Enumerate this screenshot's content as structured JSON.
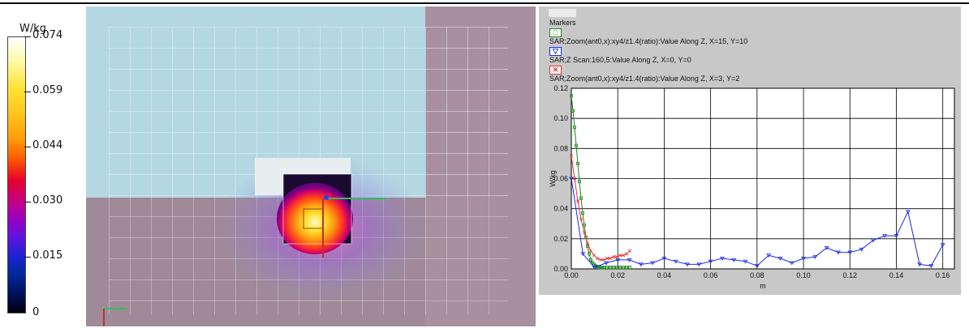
{
  "colorbar": {
    "title": "W/kg",
    "labels": [
      "0.074",
      "0.059",
      "0.044",
      "0.030",
      "0.015",
      "0"
    ]
  },
  "scan_image": {
    "description_icon": "3d-sar-heatmap"
  },
  "chart_data": {
    "type": "line",
    "legend_title": "Markers",
    "xlabel": "m",
    "ylabel": "W/kg",
    "xlim": [
      0,
      0.165
    ],
    "ylim": [
      0,
      0.12
    ],
    "xticks": [
      "0.00",
      "0.02",
      "0.04",
      "0.06",
      "0.08",
      "0.10",
      "0.12",
      "0.14",
      "0.16"
    ],
    "yticks": [
      "0.00",
      "0.02",
      "0.04",
      "0.06",
      "0.08",
      "0.10",
      "0.12"
    ],
    "grid": true,
    "legend_position": "top-left",
    "series": [
      {
        "name": "SAR;Zoom(ant0,x):xy4/z1.4(ratio):Value Along Z, X=15, Y=10",
        "color": "#1a8a1a",
        "marker": "square",
        "x": [
          0.0,
          0.0007,
          0.0014,
          0.0021,
          0.0028,
          0.0035,
          0.0042,
          0.0049,
          0.0056,
          0.0063,
          0.007,
          0.0077,
          0.0084,
          0.0091,
          0.0098,
          0.0105,
          0.0112,
          0.0119,
          0.0126,
          0.0133,
          0.014,
          0.0154,
          0.0168,
          0.0182,
          0.0196,
          0.021,
          0.0224,
          0.0238,
          0.0252
        ],
        "y": [
          0.115,
          0.105,
          0.094,
          0.082,
          0.07,
          0.058,
          0.047,
          0.037,
          0.029,
          0.021,
          0.015,
          0.01,
          0.006,
          0.004,
          0.003,
          0.002,
          0.0015,
          0.001,
          0.001,
          0.001,
          0.001,
          0.001,
          0.001,
          0.001,
          0.001,
          0.001,
          0.001,
          0.001,
          0.001
        ]
      },
      {
        "name": "SAR;Z Scan:160,5:Value Along Z, X=0, Y=0",
        "color": "#1a2ae6",
        "marker": "triangle-down",
        "x": [
          0.0,
          0.005,
          0.01,
          0.015,
          0.02,
          0.025,
          0.03,
          0.035,
          0.04,
          0.045,
          0.05,
          0.055,
          0.06,
          0.065,
          0.07,
          0.075,
          0.08,
          0.085,
          0.09,
          0.095,
          0.1,
          0.105,
          0.11,
          0.115,
          0.12,
          0.125,
          0.13,
          0.135,
          0.14,
          0.145,
          0.15,
          0.155,
          0.16
        ],
        "y": [
          0.06,
          0.01,
          0.001,
          0.004,
          0.006,
          0.006,
          0.003,
          0.004,
          0.007,
          0.005,
          0.003,
          0.003,
          0.005,
          0.007,
          0.006,
          0.005,
          0.002,
          0.009,
          0.007,
          0.004,
          0.007,
          0.008,
          0.014,
          0.011,
          0.011,
          0.013,
          0.019,
          0.022,
          0.022,
          0.038,
          0.003,
          0.002,
          0.016
        ]
      },
      {
        "name": "SAR;Zoom(ant0,x):xy4/z1.4(ratio):Value Along Z, X=3, Y=2",
        "color": "#e63030",
        "marker": "x",
        "x": [
          0.0,
          0.0014,
          0.0028,
          0.0042,
          0.0056,
          0.007,
          0.0084,
          0.0098,
          0.0112,
          0.0126,
          0.014,
          0.0154,
          0.0168,
          0.0182,
          0.0196,
          0.021,
          0.0224,
          0.0238,
          0.0252
        ],
        "y": [
          0.075,
          0.06,
          0.045,
          0.033,
          0.024,
          0.017,
          0.012,
          0.009,
          0.007,
          0.006,
          0.006,
          0.007,
          0.007,
          0.008,
          0.008,
          0.009,
          0.009,
          0.01,
          0.012
        ]
      }
    ]
  }
}
